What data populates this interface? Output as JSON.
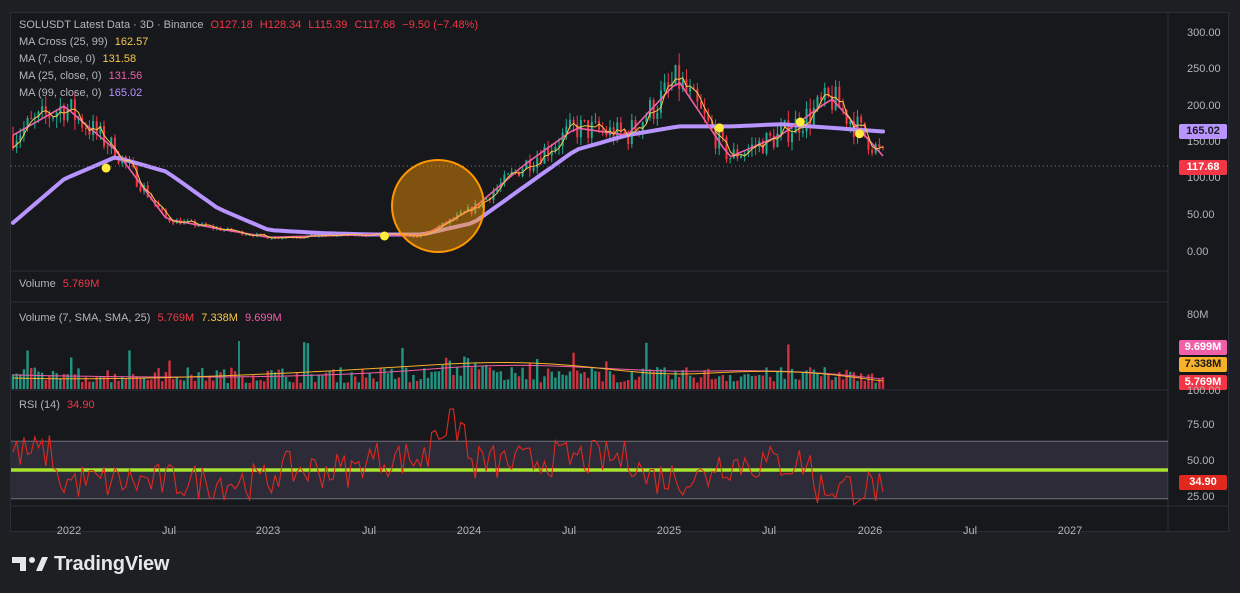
{
  "header": {
    "symbol_line": "SOLUSDT Latest Data · 3D · Binance",
    "open": "O127.18",
    "high": "H128.34",
    "low": "L115.39",
    "close": "C117.68",
    "change": "−9.50 (−7.48%)"
  },
  "indicators": {
    "ma_cross": {
      "label": "MA Cross (25, 99)",
      "value": "162.57"
    },
    "ma7": {
      "label": "MA (7, close, 0)",
      "value": "131.58"
    },
    "ma25": {
      "label": "MA (25, close, 0)",
      "value": "131.56"
    },
    "ma99": {
      "label": "MA (99, close, 0)",
      "value": "165.02"
    }
  },
  "volume_pane": {
    "title": "Volume",
    "value": "5.769M",
    "sma_label": "Volume (7, SMA, SMA, 25)",
    "v1": "5.769M",
    "v2": "7.338M",
    "v3": "9.699M",
    "axis_top": "80M"
  },
  "rsi_pane": {
    "label": "RSI (14)",
    "value": "34.90",
    "ticks": [
      "100.00",
      "75.00",
      "50.00",
      "25.00"
    ]
  },
  "price_axis": {
    "ticks": [
      "300.00",
      "250.00",
      "200.00",
      "150.00",
      "100.00",
      "50.00",
      "0.00"
    ],
    "tag_ma99": "165.02",
    "tag_last": "117.68"
  },
  "volume_axis_tags": [
    "9.699M",
    "7.338M",
    "5.769M"
  ],
  "time_axis": [
    "2022",
    "Jul",
    "2023",
    "Jul",
    "2024",
    "Jul",
    "2025",
    "Jul",
    "2026",
    "Jul",
    "2027"
  ],
  "brand": {
    "name": "TradingView"
  },
  "colors": {
    "background": "#17181c",
    "up": "#22ab94",
    "down": "#f23645",
    "ma25": "#f05fa8",
    "ma99": "#b794ff",
    "ma7": "#f7c948",
    "rsi": "#e0281f",
    "rsi_mid": "#a6e22e",
    "highlight": "#ff9800"
  },
  "chart_data": {
    "type": "line",
    "title": "SOLUSDT Latest Data · 3D · Binance",
    "ylim": [
      -20,
      320
    ],
    "x": [
      "2021-10",
      "2022-01",
      "2022-04",
      "2022-07",
      "2022-10",
      "2023-01",
      "2023-04",
      "2023-07",
      "2023-10",
      "2024-01",
      "2024-04",
      "2024-07",
      "2024-10",
      "2025-01",
      "2025-04",
      "2025-07",
      "2025-10",
      "2026-01"
    ],
    "series": [
      {
        "name": "MA (25, close, 0)",
        "values": [
          160,
          200,
          140,
          45,
          32,
          20,
          22,
          24,
          22,
          60,
          120,
          170,
          160,
          235,
          130,
          160,
          210,
          131.56
        ]
      },
      {
        "name": "MA (99, close, 0)",
        "values": [
          40,
          100,
          130,
          110,
          60,
          30,
          26,
          24,
          24,
          40,
          90,
          140,
          160,
          172,
          172,
          175,
          170,
          165.02
        ]
      }
    ]
  }
}
